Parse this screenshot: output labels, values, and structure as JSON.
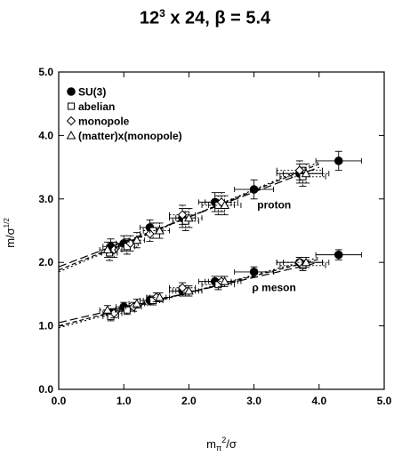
{
  "title": {
    "prefix": "12",
    "exp": "3",
    "suffix": " x 24,  β = 5.4"
  },
  "chart_data": {
    "type": "scatter",
    "xlabel": "m_π²/σ",
    "ylabel": "m/σ^1/2",
    "xlim": [
      0.0,
      5.0
    ],
    "ylim": [
      0.0,
      5.0
    ],
    "xticks": [
      "0.0",
      "1.0",
      "2.0",
      "3.0",
      "4.0",
      "5.0"
    ],
    "yticks": [
      "0.0",
      "1.0",
      "2.0",
      "3.0",
      "4.0",
      "5.0"
    ],
    "legend_position": "top-left",
    "legend": [
      {
        "marker": "filled-circle",
        "label": "SU(3)"
      },
      {
        "marker": "square",
        "label": "abelian"
      },
      {
        "marker": "diamond",
        "label": "monopole"
      },
      {
        "marker": "triangle",
        "label": "(matter)x(monopole)"
      }
    ],
    "annotations": [
      {
        "text": "proton",
        "x": 3.05,
        "y": 2.85
      },
      {
        "text": "ρ meson",
        "x": 2.97,
        "y": 1.55
      }
    ],
    "series": [
      {
        "name": "SU(3)",
        "group": "proton",
        "marker": "filled-circle",
        "points": [
          [
            0.8,
            2.25
          ],
          [
            1.0,
            2.3
          ],
          [
            1.4,
            2.55
          ],
          [
            1.9,
            2.7
          ],
          [
            2.4,
            2.95
          ],
          [
            3.0,
            3.15
          ],
          [
            3.7,
            3.4
          ],
          [
            4.3,
            3.6
          ]
        ],
        "xerr": [
          0.12,
          0.12,
          0.15,
          0.2,
          0.25,
          0.3,
          0.35,
          0.35
        ],
        "yerr": [
          0.12,
          0.12,
          0.12,
          0.15,
          0.15,
          0.15,
          0.15,
          0.15
        ]
      },
      {
        "name": "abelian",
        "group": "proton",
        "marker": "square",
        "points": [
          [
            0.78,
            2.15
          ],
          [
            1.05,
            2.25
          ],
          [
            1.45,
            2.5
          ],
          [
            1.95,
            2.65
          ],
          [
            2.45,
            2.9
          ],
          [
            3.75,
            3.35
          ]
        ],
        "xerr": [
          0.12,
          0.12,
          0.15,
          0.2,
          0.25,
          0.35
        ],
        "yerr": [
          0.12,
          0.12,
          0.12,
          0.15,
          0.15,
          0.15
        ]
      },
      {
        "name": "monopole",
        "group": "proton",
        "marker": "diamond",
        "points": [
          [
            0.85,
            2.2
          ],
          [
            1.1,
            2.3
          ],
          [
            1.4,
            2.45
          ],
          [
            1.9,
            2.75
          ],
          [
            2.5,
            2.95
          ],
          [
            3.7,
            3.45
          ]
        ],
        "xerr": [
          0.12,
          0.12,
          0.15,
          0.2,
          0.25,
          0.35
        ],
        "yerr": [
          0.12,
          0.12,
          0.12,
          0.15,
          0.15,
          0.15
        ]
      },
      {
        "name": "(matter)x(monopole)",
        "group": "proton",
        "marker": "triangle",
        "points": [
          [
            0.75,
            2.2
          ],
          [
            1.2,
            2.35
          ],
          [
            1.55,
            2.5
          ],
          [
            2.0,
            2.7
          ],
          [
            2.55,
            2.9
          ],
          [
            3.8,
            3.4
          ]
        ],
        "xerr": [
          0.12,
          0.12,
          0.15,
          0.2,
          0.25,
          0.35
        ],
        "yerr": [
          0.12,
          0.12,
          0.12,
          0.15,
          0.15,
          0.15
        ]
      },
      {
        "name": "SU(3)",
        "group": "rho",
        "marker": "filled-circle",
        "points": [
          [
            0.8,
            1.2
          ],
          [
            1.0,
            1.3
          ],
          [
            1.4,
            1.4
          ],
          [
            1.9,
            1.55
          ],
          [
            2.4,
            1.7
          ],
          [
            3.0,
            1.85
          ],
          [
            3.7,
            2.0
          ],
          [
            4.3,
            2.12
          ]
        ],
        "xerr": [
          0.12,
          0.12,
          0.15,
          0.2,
          0.25,
          0.3,
          0.35,
          0.35
        ],
        "yerr": [
          0.07,
          0.07,
          0.07,
          0.08,
          0.08,
          0.08,
          0.08,
          0.08
        ]
      },
      {
        "name": "abelian",
        "group": "rho",
        "marker": "square",
        "points": [
          [
            0.8,
            1.15
          ],
          [
            1.05,
            1.25
          ],
          [
            1.45,
            1.4
          ],
          [
            1.95,
            1.55
          ],
          [
            2.45,
            1.65
          ],
          [
            3.75,
            1.95
          ]
        ],
        "xerr": [
          0.12,
          0.12,
          0.15,
          0.2,
          0.25,
          0.35
        ],
        "yerr": [
          0.07,
          0.07,
          0.07,
          0.08,
          0.08,
          0.08
        ]
      },
      {
        "name": "monopole",
        "group": "rho",
        "marker": "diamond",
        "points": [
          [
            0.85,
            1.2
          ],
          [
            1.15,
            1.3
          ],
          [
            1.5,
            1.45
          ],
          [
            1.9,
            1.6
          ],
          [
            2.5,
            1.7
          ],
          [
            3.7,
            2.0
          ]
        ],
        "xerr": [
          0.12,
          0.12,
          0.15,
          0.2,
          0.25,
          0.35
        ],
        "yerr": [
          0.07,
          0.07,
          0.07,
          0.08,
          0.08,
          0.08
        ]
      },
      {
        "name": "(matter)x(monopole)",
        "group": "rho",
        "marker": "triangle",
        "points": [
          [
            0.75,
            1.25
          ],
          [
            1.2,
            1.35
          ],
          [
            1.55,
            1.45
          ],
          [
            2.0,
            1.55
          ],
          [
            2.55,
            1.7
          ],
          [
            3.8,
            2.0
          ]
        ],
        "xerr": [
          0.12,
          0.12,
          0.15,
          0.2,
          0.25,
          0.35
        ],
        "yerr": [
          0.07,
          0.07,
          0.07,
          0.08,
          0.08,
          0.08
        ]
      }
    ],
    "fits": [
      {
        "group": "proton",
        "dash": "short",
        "from": [
          0.0,
          1.88
        ],
        "to": [
          4.0,
          3.55
        ]
      },
      {
        "group": "proton",
        "dash": "long",
        "from": [
          0.0,
          1.93
        ],
        "to": [
          4.0,
          3.5
        ]
      },
      {
        "group": "proton",
        "dash": "dot",
        "from": [
          0.0,
          1.85
        ],
        "to": [
          4.0,
          3.58
        ]
      },
      {
        "group": "rho",
        "dash": "short",
        "from": [
          0.0,
          1.0
        ],
        "to": [
          4.0,
          2.05
        ]
      },
      {
        "group": "rho",
        "dash": "long",
        "from": [
          0.0,
          1.05
        ],
        "to": [
          4.0,
          2.0
        ]
      },
      {
        "group": "rho",
        "dash": "dot",
        "from": [
          0.0,
          0.97
        ],
        "to": [
          4.0,
          2.08
        ]
      }
    ]
  }
}
